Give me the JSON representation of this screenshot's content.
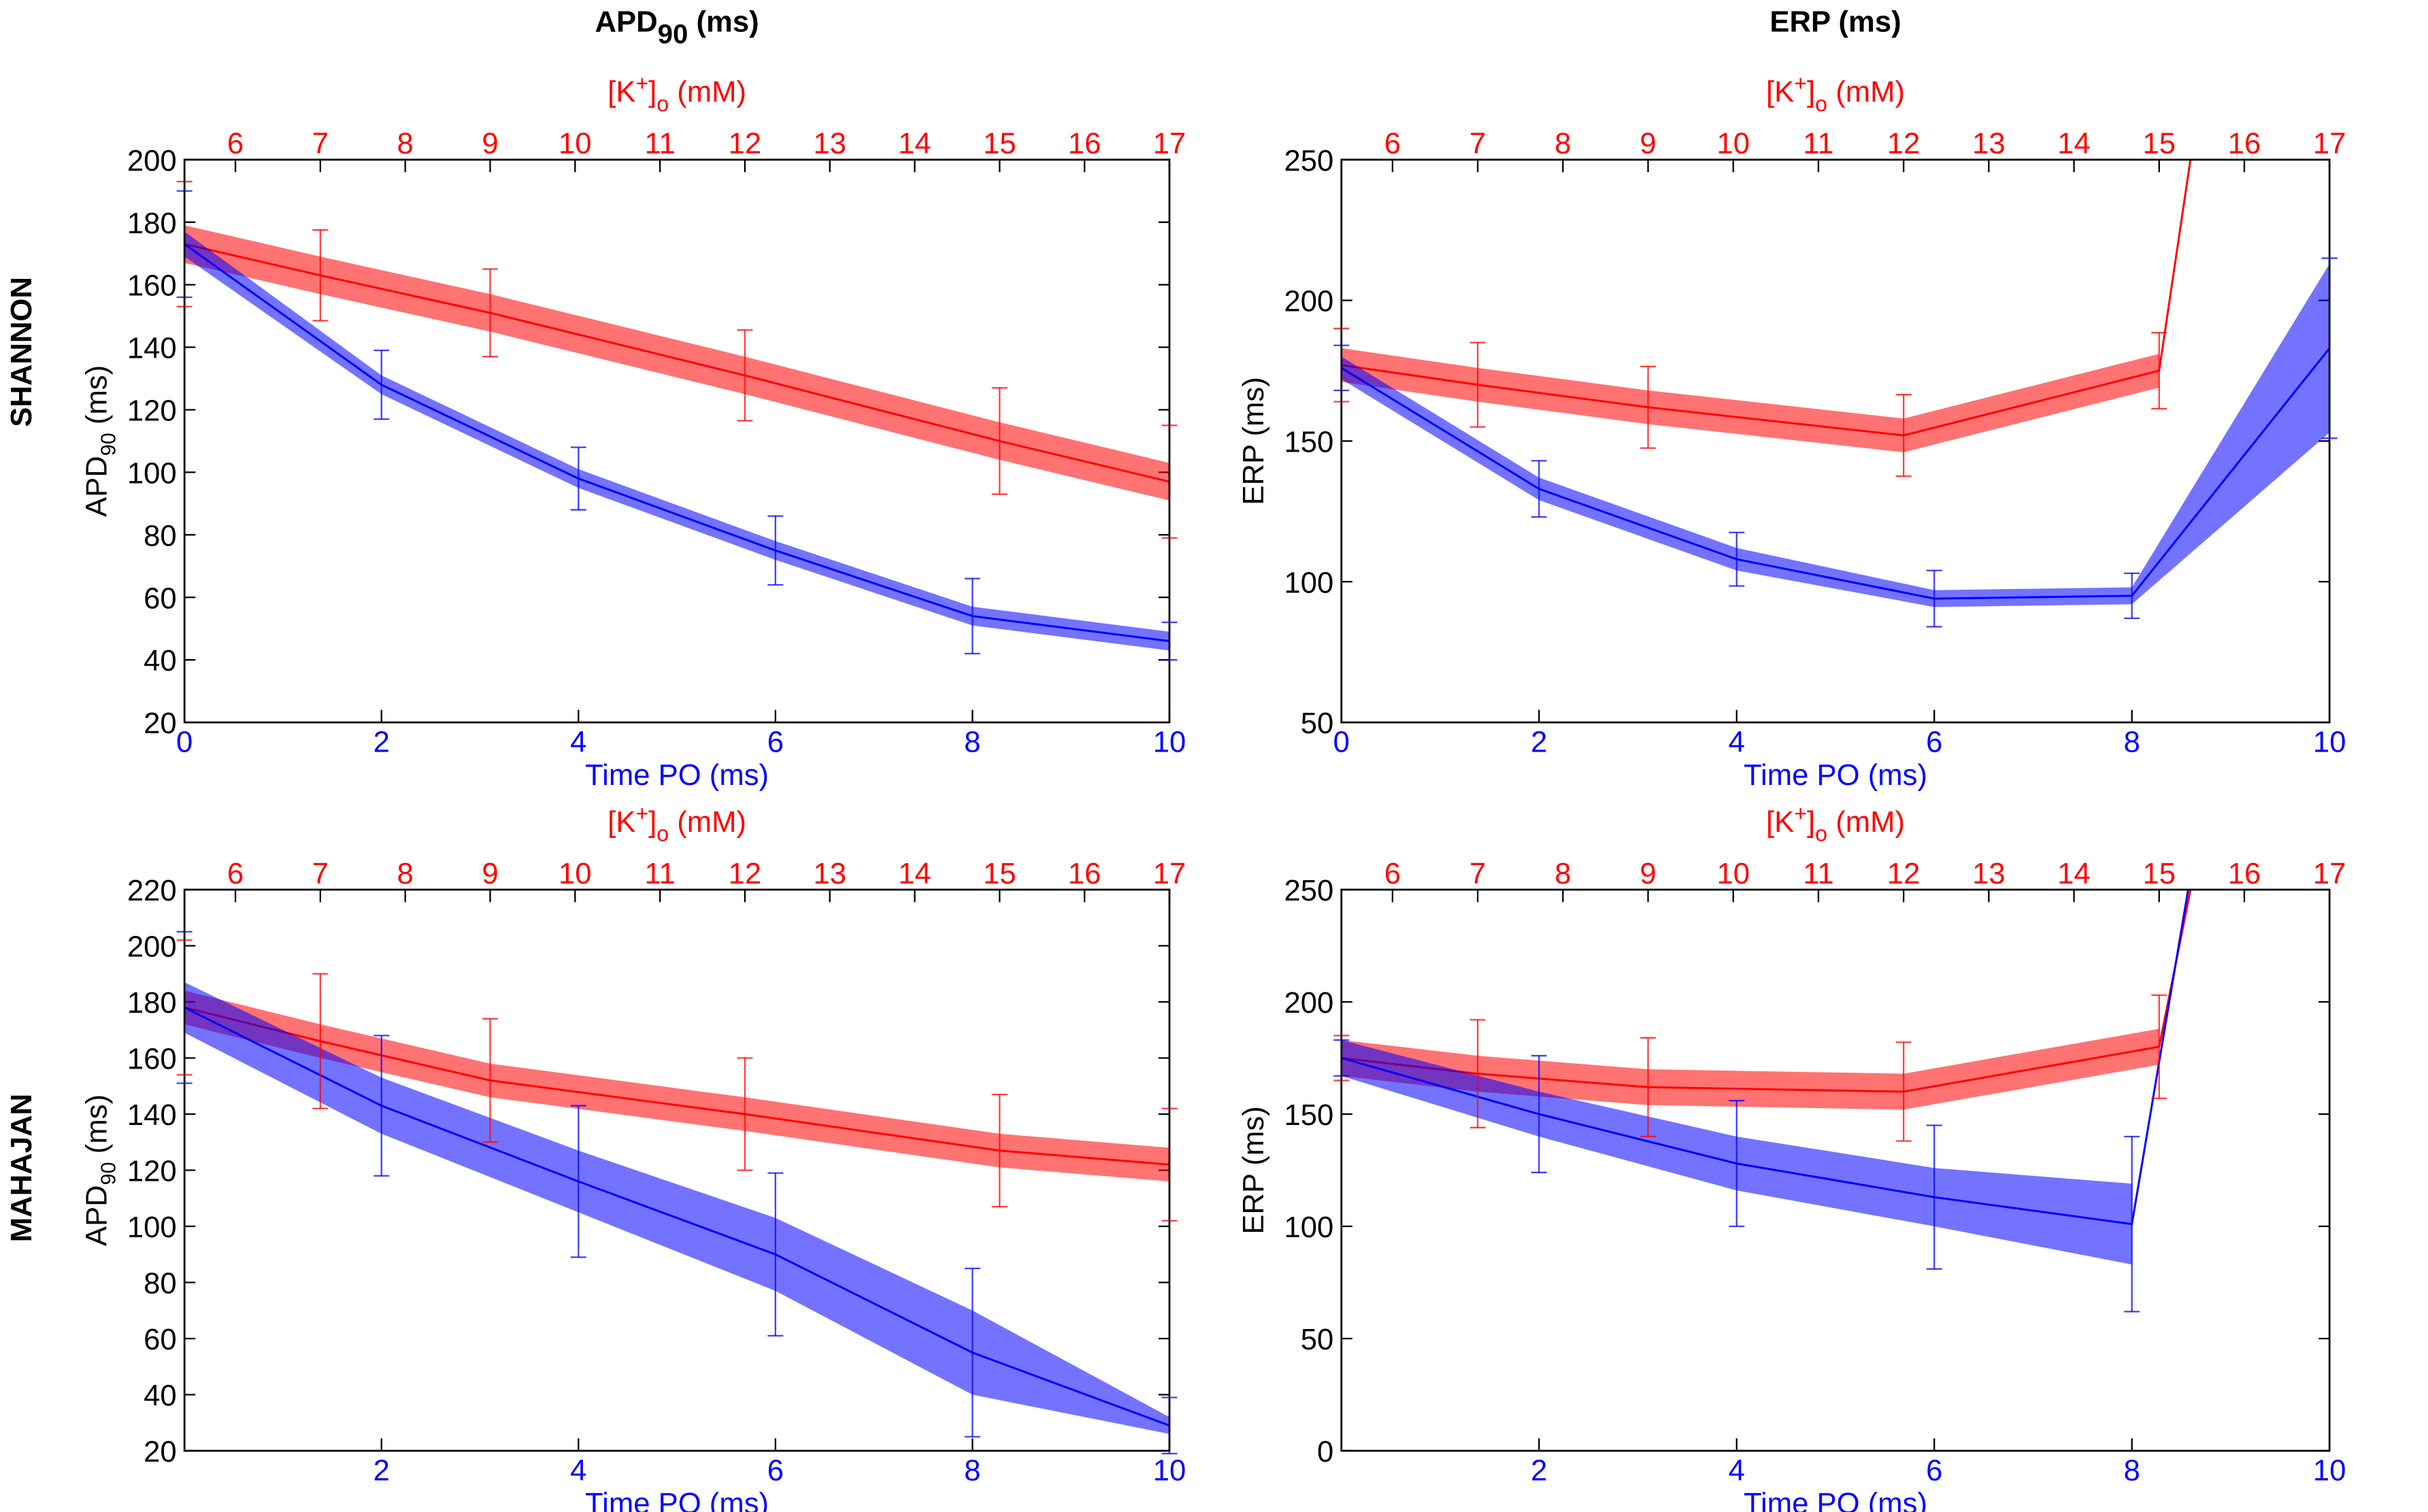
{
  "columns": [
    [
      {
        "text": "APD",
        "shift": null
      },
      {
        "text": "90",
        "shift": "sub"
      },
      {
        "text": " (ms)",
        "shift": null
      }
    ],
    [
      {
        "text": "ERP (ms)",
        "shift": null
      }
    ]
  ],
  "rows": [
    "SHANNON",
    "MAHAJAN"
  ],
  "chart_data": [
    {
      "type": "line",
      "x_label": [
        {
          "text": "Time PO (ms)",
          "shift": null
        }
      ],
      "x2_label": [
        {
          "text": "[K",
          "shift": null
        },
        {
          "text": "+",
          "shift": "sup"
        },
        {
          "text": "]",
          "shift": null
        },
        {
          "text": "o",
          "shift": "sub"
        },
        {
          "text": " (mM)",
          "shift": null
        }
      ],
      "y_label": [
        {
          "text": "APD",
          "shift": null
        },
        {
          "text": "90",
          "shift": "sub"
        },
        {
          "text": " (ms)",
          "shift": null
        }
      ],
      "xlim": [
        0,
        10
      ],
      "xticks": [
        0,
        2,
        4,
        6,
        8,
        10
      ],
      "x2lim": [
        5.4,
        17
      ],
      "x2ticks": [
        6,
        7,
        8,
        9,
        10,
        11,
        12,
        13,
        14,
        15,
        16,
        17
      ],
      "ylim": [
        20,
        200
      ],
      "yticks": [
        20,
        40,
        60,
        80,
        100,
        120,
        140,
        160,
        180,
        200
      ],
      "series": [
        {
          "color": "#ff0000",
          "axis": "x2",
          "x": [
            5.4,
            7,
            9,
            12,
            15,
            17
          ],
          "values": [
            173,
            163,
            151,
            131,
            110,
            97
          ],
          "errors": [
            20,
            14.5,
            14,
            14.5,
            17,
            18
          ],
          "band": [
            6,
            6,
            6,
            6,
            6,
            6
          ]
        },
        {
          "color": "#0000ff",
          "axis": "x",
          "x": [
            0,
            2,
            4,
            6,
            8,
            10
          ],
          "values": [
            173,
            128,
            98,
            75,
            54,
            46
          ],
          "errors": [
            17,
            11,
            10,
            11,
            12,
            6
          ],
          "band": [
            4,
            3,
            3,
            3,
            3,
            3
          ]
        }
      ]
    },
    {
      "type": "line",
      "x_label": [
        {
          "text": "Time PO (ms)",
          "shift": null
        }
      ],
      "x2_label": [
        {
          "text": "[K",
          "shift": null
        },
        {
          "text": "+",
          "shift": "sup"
        },
        {
          "text": "]",
          "shift": null
        },
        {
          "text": "o",
          "shift": "sub"
        },
        {
          "text": " (mM)",
          "shift": null
        }
      ],
      "y_label": [
        {
          "text": "ERP (ms)",
          "shift": null
        }
      ],
      "xlim": [
        0,
        10
      ],
      "xticks": [
        0,
        2,
        4,
        6,
        8,
        10
      ],
      "x2lim": [
        5.4,
        17
      ],
      "x2ticks": [
        6,
        7,
        8,
        9,
        10,
        11,
        12,
        13,
        14,
        15,
        16,
        17
      ],
      "ylim": [
        50,
        250
      ],
      "yticks": [
        50,
        100,
        150,
        200,
        250
      ],
      "series": [
        {
          "color": "#ff0000",
          "axis": "x2",
          "x": [
            5.4,
            7,
            9,
            12,
            15,
            15.5
          ],
          "values": [
            177,
            170,
            162,
            152,
            175,
            277
          ],
          "errors": [
            13,
            15,
            14.5,
            14.5,
            13.5,
            null
          ],
          "band": [
            6,
            6,
            6,
            6,
            6,
            null
          ]
        },
        {
          "color": "#0000ff",
          "axis": "x",
          "x": [
            0,
            2,
            4,
            6,
            8,
            10
          ],
          "values": [
            176,
            133,
            108,
            94,
            95,
            183
          ],
          "errors": [
            8,
            10,
            9.5,
            10,
            8,
            32
          ],
          "band": [
            4,
            4,
            4,
            3,
            3,
            30
          ]
        }
      ]
    },
    {
      "type": "line",
      "x_label": [
        {
          "text": "Time PO (ms)",
          "shift": null
        }
      ],
      "x2_label": [
        {
          "text": "[K",
          "shift": null
        },
        {
          "text": "+",
          "shift": "sup"
        },
        {
          "text": "]",
          "shift": null
        },
        {
          "text": "o",
          "shift": "sub"
        },
        {
          "text": " (mM)",
          "shift": null
        }
      ],
      "y_label": [
        {
          "text": "APD",
          "shift": null
        },
        {
          "text": "90",
          "shift": "sub"
        },
        {
          "text": " (ms)",
          "shift": null
        }
      ],
      "xlim": [
        0,
        10
      ],
      "xticks": [
        2,
        4,
        6,
        8,
        10
      ],
      "x2lim": [
        5.4,
        17
      ],
      "x2ticks": [
        6,
        7,
        8,
        9,
        10,
        11,
        12,
        13,
        14,
        15,
        16,
        17
      ],
      "ylim": [
        20,
        220
      ],
      "yticks": [
        20,
        40,
        60,
        80,
        100,
        120,
        140,
        160,
        180,
        200,
        220
      ],
      "series": [
        {
          "color": "#ff0000",
          "axis": "x2",
          "x": [
            5.4,
            7,
            9,
            12,
            15,
            17
          ],
          "values": [
            178,
            166,
            152,
            140,
            127,
            122
          ],
          "errors": [
            24,
            24,
            22,
            20,
            20,
            20
          ],
          "band": [
            6,
            6,
            6,
            6,
            6,
            6
          ]
        },
        {
          "color": "#0000ff",
          "axis": "x",
          "x": [
            0,
            2,
            4,
            6,
            8,
            10
          ],
          "values": [
            178,
            143,
            116,
            90,
            55,
            29
          ],
          "errors": [
            27,
            25,
            27,
            29,
            30,
            10
          ],
          "band": [
            9,
            10,
            11,
            13,
            15,
            3
          ]
        }
      ]
    },
    {
      "type": "line",
      "x_label": [
        {
          "text": "Time PO (ms)",
          "shift": null
        }
      ],
      "x2_label": [
        {
          "text": "[K",
          "shift": null
        },
        {
          "text": "+",
          "shift": "sup"
        },
        {
          "text": "]",
          "shift": null
        },
        {
          "text": "o",
          "shift": "sub"
        },
        {
          "text": " (mM)",
          "shift": null
        }
      ],
      "y_label": [
        {
          "text": "ERP (ms)",
          "shift": null
        }
      ],
      "xlim": [
        0,
        10
      ],
      "xticks": [
        2,
        4,
        6,
        8,
        10
      ],
      "x2lim": [
        5.4,
        17
      ],
      "x2ticks": [
        6,
        7,
        8,
        9,
        10,
        11,
        12,
        13,
        14,
        15,
        16,
        17
      ],
      "ylim": [
        0,
        250
      ],
      "yticks": [
        0,
        50,
        100,
        150,
        200,
        250
      ],
      "series": [
        {
          "color": "#ff0000",
          "axis": "x2",
          "x": [
            5.4,
            7,
            9,
            12,
            15,
            15.5
          ],
          "values": [
            175,
            168,
            162,
            160,
            180,
            275
          ],
          "errors": [
            10,
            24,
            22,
            22,
            23,
            null
          ],
          "band": [
            8,
            8,
            8,
            8,
            8,
            null
          ]
        },
        {
          "color": "#0000ff",
          "axis": "x",
          "x": [
            0,
            2,
            4,
            6,
            8,
            8.6
          ],
          "values": [
            175,
            150,
            128,
            113,
            101,
            258
          ],
          "errors": [
            8,
            26,
            28,
            32,
            39,
            null
          ],
          "band": [
            8,
            10,
            12,
            13,
            18,
            null
          ]
        }
      ]
    }
  ]
}
